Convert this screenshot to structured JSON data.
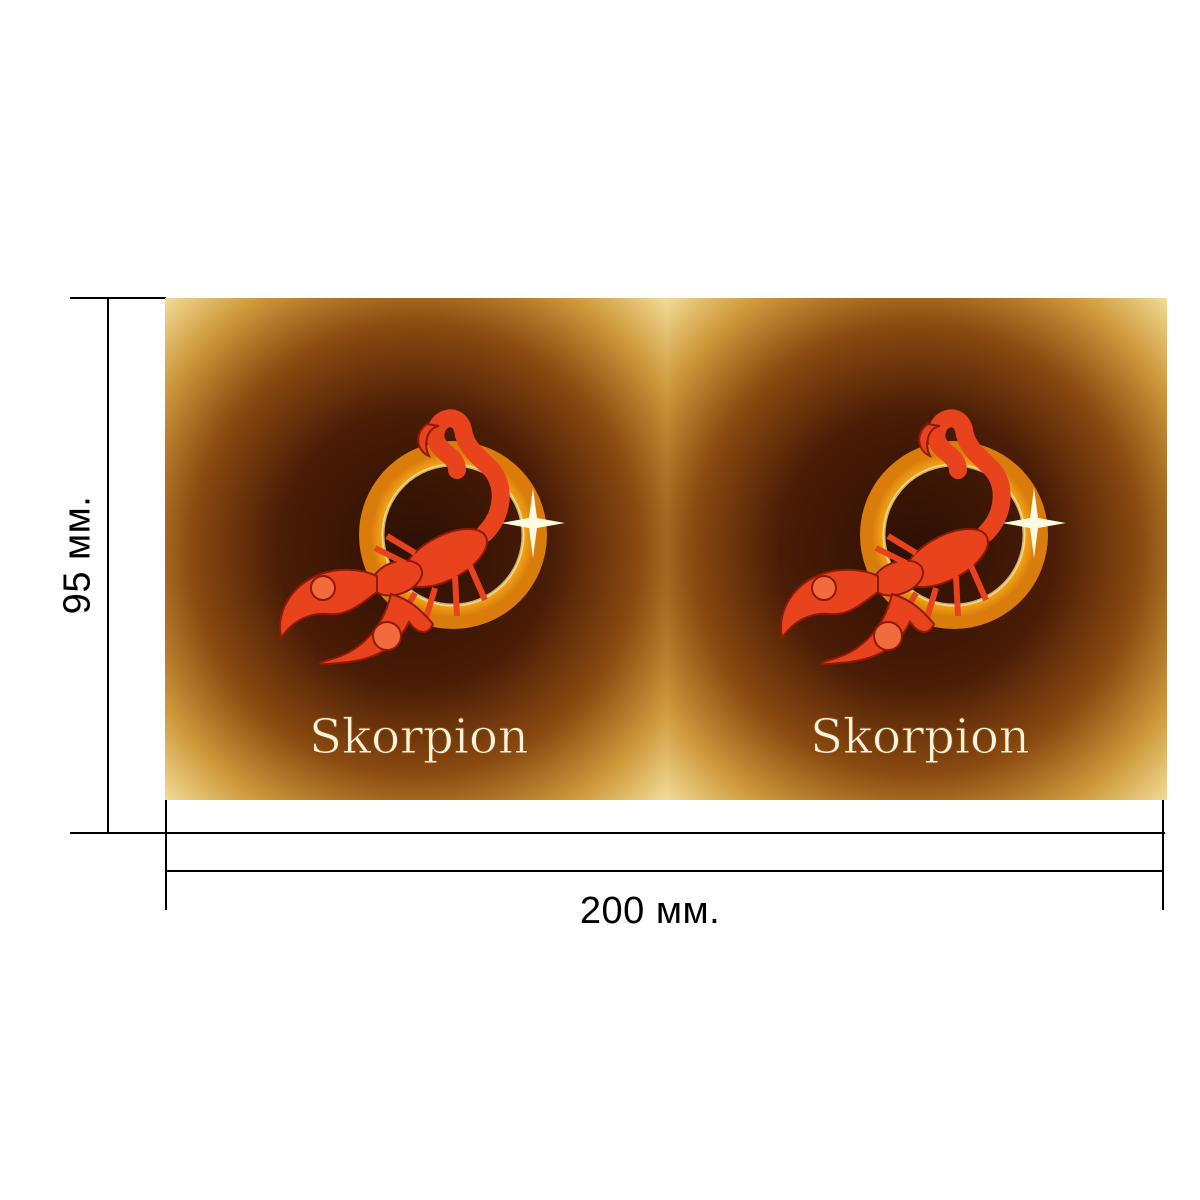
{
  "dimensions": {
    "height_label": "95 мм.",
    "width_label": "200 мм."
  },
  "panels": [
    {
      "sign_name": "Skorpion",
      "icon": "scorpion-zodiac-icon"
    },
    {
      "sign_name": "Skorpion",
      "icon": "scorpion-zodiac-icon"
    }
  ],
  "colors": {
    "background_edge": "#f3d98a",
    "background_center": "#3a1606",
    "scorpion": "#e8431c",
    "ring": "#f5b320",
    "text": "#fbf4df"
  }
}
